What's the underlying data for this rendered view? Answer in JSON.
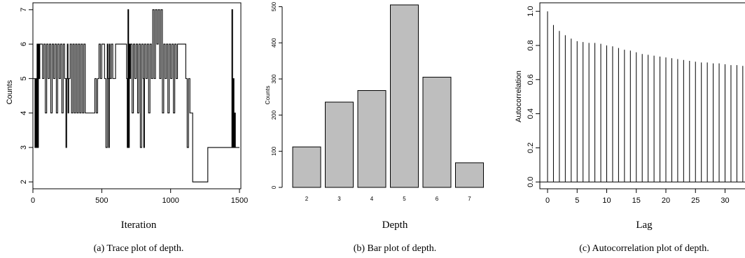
{
  "chart_data": [
    {
      "type": "line",
      "xlabel": "Iteration",
      "ylabel": "Counts",
      "caption": "(a) Trace plot of depth.",
      "xlim": [
        0,
        1510
      ],
      "ylim": [
        1.8,
        7.2
      ],
      "xticks": [
        0,
        500,
        1000,
        1500
      ],
      "yticks": [
        2,
        3,
        4,
        5,
        6,
        7
      ],
      "x": [
        0,
        15,
        20,
        25,
        30,
        35,
        40,
        45,
        50,
        70,
        80,
        90,
        100,
        110,
        120,
        130,
        140,
        150,
        160,
        170,
        180,
        190,
        200,
        210,
        220,
        230,
        240,
        245,
        250,
        255,
        260,
        270,
        280,
        290,
        300,
        310,
        320,
        330,
        340,
        350,
        360,
        370,
        380,
        400,
        420,
        440,
        450,
        460,
        470,
        480,
        490,
        500,
        520,
        530,
        540,
        545,
        550,
        555,
        560,
        570,
        580,
        600,
        650,
        680,
        685,
        690,
        695,
        700,
        705,
        710,
        720,
        730,
        740,
        750,
        760,
        770,
        780,
        790,
        800,
        805,
        810,
        820,
        830,
        840,
        850,
        860,
        870,
        880,
        890,
        900,
        910,
        920,
        930,
        940,
        950,
        960,
        970,
        980,
        990,
        1000,
        1010,
        1020,
        1030,
        1040,
        1050,
        1060,
        1080,
        1100,
        1110,
        1120,
        1130,
        1140,
        1150,
        1160,
        1270,
        1440,
        1445,
        1450,
        1455,
        1460,
        1465,
        1470,
        1500
      ],
      "values": [
        5,
        3,
        5,
        3,
        6,
        3,
        6,
        5,
        6,
        5,
        6,
        4,
        6,
        5,
        6,
        4,
        6,
        5,
        6,
        4,
        6,
        5,
        6,
        4,
        6,
        5,
        3,
        5,
        6,
        4,
        5,
        6,
        4,
        6,
        4,
        6,
        4,
        6,
        4,
        6,
        4,
        6,
        4,
        4,
        4,
        4,
        5,
        4,
        5,
        6,
        5,
        6,
        5,
        3,
        6,
        5,
        3,
        6,
        5,
        6,
        5,
        6,
        6,
        5,
        3,
        7,
        3,
        6,
        5,
        6,
        4,
        6,
        5,
        6,
        4,
        6,
        3,
        6,
        5,
        3,
        6,
        5,
        6,
        4,
        6,
        5,
        7,
        5,
        7,
        6,
        7,
        5,
        7,
        4,
        6,
        5,
        6,
        4,
        6,
        5,
        6,
        4,
        6,
        5,
        6,
        6,
        6,
        6,
        5,
        3,
        5,
        4,
        4,
        2,
        3,
        3,
        7,
        3,
        5,
        3,
        4,
        3,
        3
      ]
    },
    {
      "type": "bar",
      "xlabel": "Depth",
      "ylabel": "Counts",
      "caption": "(b) Bar plot of depth.",
      "categories": [
        "2",
        "3",
        "4",
        "5",
        "6",
        "7"
      ],
      "values": [
        112,
        236,
        268,
        505,
        305,
        68
      ],
      "ylim": [
        0,
        505
      ],
      "yticks": [
        0,
        100,
        200,
        300,
        400,
        500
      ]
    },
    {
      "type": "bar",
      "xlabel": "Lag",
      "ylabel": "Autocorrelation",
      "caption": "(c) Autocorrelation plot of depth.",
      "lags": [
        0,
        1,
        2,
        3,
        4,
        5,
        6,
        7,
        8,
        9,
        10,
        11,
        12,
        13,
        14,
        15,
        16,
        17,
        18,
        19,
        20,
        21,
        22,
        23,
        24,
        25,
        26,
        27,
        28,
        29,
        30,
        31,
        32,
        33,
        34
      ],
      "values": [
        1.0,
        0.92,
        0.885,
        0.86,
        0.84,
        0.825,
        0.82,
        0.815,
        0.815,
        0.81,
        0.8,
        0.795,
        0.785,
        0.775,
        0.77,
        0.76,
        0.75,
        0.745,
        0.74,
        0.735,
        0.73,
        0.725,
        0.72,
        0.715,
        0.71,
        0.705,
        0.7,
        0.7,
        0.695,
        0.695,
        0.69,
        0.685,
        0.685,
        0.68,
        0.675
      ],
      "ylim": [
        -0.04,
        1.05
      ],
      "xticks": [
        0,
        5,
        10,
        15,
        20,
        25,
        30
      ],
      "yticks": [
        "0.0",
        "0.2",
        "0.4",
        "0.6",
        "0.8",
        "1.0"
      ]
    }
  ]
}
